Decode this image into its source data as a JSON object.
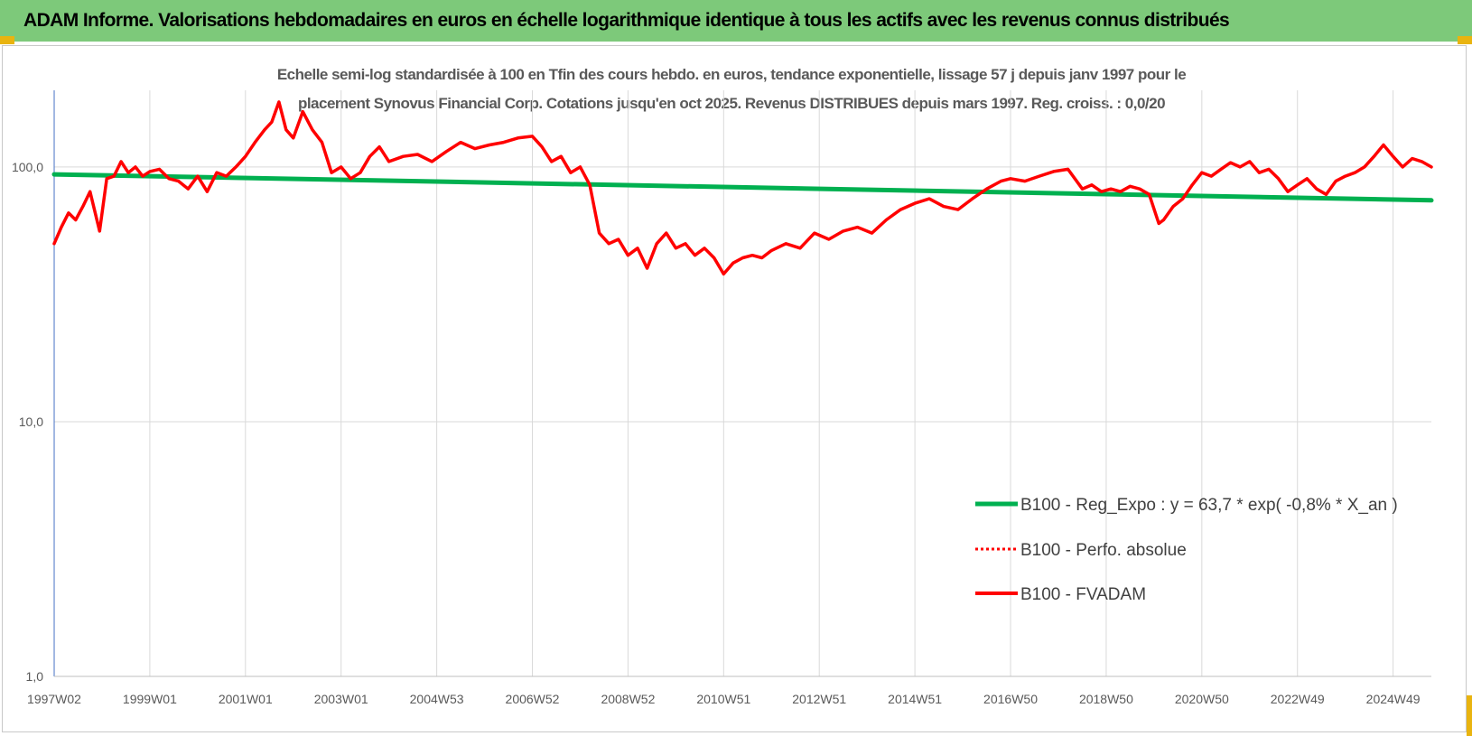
{
  "banner": {
    "title": "ADAM Informe. Valorisations hebdomadaires en euros en échelle logarithmique identique à tous les actifs avec les revenus connus distribués",
    "background": "#7dc97a"
  },
  "chart_data": {
    "type": "line",
    "title_line1": "Echelle semi-log standardisée à 100 en Tfin des cours hebdo. en euros, tendance exponentielle, lissage 57 j depuis janv 1997 pour le",
    "title_line2": "placement Synovus Financial Corp. Cotations jusqu'en oct 2025. Revenus DISTRIBUES depuis mars 1997. Reg. croiss. : 0,0/20",
    "y_scale": "log",
    "ylim": [
      1,
      200
    ],
    "yticks": [
      {
        "value": 1,
        "label": "1,0"
      },
      {
        "value": 10,
        "label": "10,0"
      },
      {
        "value": 100,
        "label": "100,0"
      }
    ],
    "xlim": [
      1997.0,
      2025.8
    ],
    "xticks": [
      {
        "x": 1997.0,
        "label": "1997W02"
      },
      {
        "x": 1999.0,
        "label": "1999W01"
      },
      {
        "x": 2001.0,
        "label": "2001W01"
      },
      {
        "x": 2003.0,
        "label": "2003W01"
      },
      {
        "x": 2005.0,
        "label": "2004W53"
      },
      {
        "x": 2007.0,
        "label": "2006W52"
      },
      {
        "x": 2009.0,
        "label": "2008W52"
      },
      {
        "x": 2011.0,
        "label": "2010W51"
      },
      {
        "x": 2013.0,
        "label": "2012W51"
      },
      {
        "x": 2015.0,
        "label": "2014W51"
      },
      {
        "x": 2017.0,
        "label": "2016W50"
      },
      {
        "x": 2019.0,
        "label": "2018W50"
      },
      {
        "x": 2021.0,
        "label": "2020W50"
      },
      {
        "x": 2023.0,
        "label": "2022W49"
      },
      {
        "x": 2025.0,
        "label": "2024W49"
      }
    ],
    "grid": "vertical",
    "legend_position": "bottom-right",
    "series": [
      {
        "name": "B100 - Reg_Expo : y = 63,7 * exp( -0,8% *  X_an )",
        "color": "#00b050",
        "style": "solid",
        "x": [
          1997.0,
          2025.8
        ],
        "values": [
          93.5,
          74.0
        ]
      },
      {
        "name": "B100 - Perfo. absolue",
        "color": "#ff0000",
        "style": "dotted",
        "x": [],
        "values": []
      },
      {
        "name": "B100 - FVADAM",
        "color": "#ff0000",
        "style": "solid",
        "x": [
          1997.0,
          1997.15,
          1997.3,
          1997.45,
          1997.6,
          1997.75,
          1997.95,
          1998.1,
          1998.25,
          1998.4,
          1998.55,
          1998.7,
          1998.85,
          1999.0,
          1999.2,
          1999.4,
          1999.6,
          1999.8,
          2000.0,
          2000.2,
          2000.4,
          2000.6,
          2000.8,
          2001.0,
          2001.2,
          2001.4,
          2001.55,
          2001.7,
          2001.85,
          2002.0,
          2002.2,
          2002.4,
          2002.6,
          2002.8,
          2003.0,
          2003.2,
          2003.4,
          2003.6,
          2003.8,
          2004.0,
          2004.3,
          2004.6,
          2004.9,
          2005.2,
          2005.5,
          2005.8,
          2006.1,
          2006.4,
          2006.7,
          2007.0,
          2007.2,
          2007.4,
          2007.6,
          2007.8,
          2008.0,
          2008.2,
          2008.4,
          2008.6,
          2008.8,
          2009.0,
          2009.2,
          2009.4,
          2009.6,
          2009.8,
          2010.0,
          2010.2,
          2010.4,
          2010.6,
          2010.8,
          2011.0,
          2011.2,
          2011.4,
          2011.6,
          2011.8,
          2012.0,
          2012.3,
          2012.6,
          2012.9,
          2013.2,
          2013.5,
          2013.8,
          2014.1,
          2014.4,
          2014.7,
          2015.0,
          2015.3,
          2015.6,
          2015.9,
          2016.2,
          2016.5,
          2016.8,
          2017.0,
          2017.3,
          2017.6,
          2017.9,
          2018.2,
          2018.5,
          2018.7,
          2018.9,
          2019.1,
          2019.3,
          2019.5,
          2019.7,
          2019.9,
          2020.1,
          2020.2,
          2020.4,
          2020.6,
          2020.8,
          2021.0,
          2021.2,
          2021.4,
          2021.6,
          2021.8,
          2022.0,
          2022.2,
          2022.4,
          2022.6,
          2022.8,
          2023.0,
          2023.2,
          2023.4,
          2023.6,
          2023.8,
          2024.0,
          2024.2,
          2024.4,
          2024.6,
          2024.8,
          2025.0,
          2025.2,
          2025.4,
          2025.6,
          2025.8
        ],
        "values": [
          50,
          58,
          66,
          62,
          70,
          80,
          56,
          90,
          92,
          105,
          95,
          100,
          92,
          96,
          98,
          90,
          88,
          82,
          92,
          80,
          95,
          92,
          100,
          110,
          125,
          140,
          150,
          180,
          140,
          130,
          165,
          140,
          125,
          95,
          100,
          90,
          95,
          110,
          120,
          105,
          110,
          112,
          105,
          115,
          125,
          118,
          122,
          125,
          130,
          132,
          120,
          105,
          110,
          95,
          100,
          85,
          55,
          50,
          52,
          45,
          48,
          40,
          50,
          55,
          48,
          50,
          45,
          48,
          44,
          38,
          42,
          44,
          45,
          44,
          47,
          50,
          48,
          55,
          52,
          56,
          58,
          55,
          62,
          68,
          72,
          75,
          70,
          68,
          75,
          82,
          88,
          90,
          88,
          92,
          96,
          98,
          82,
          85,
          80,
          82,
          80,
          84,
          82,
          78,
          60,
          62,
          70,
          75,
          85,
          95,
          92,
          98,
          104,
          100,
          105,
          95,
          98,
          90,
          80,
          85,
          90,
          82,
          78,
          88,
          92,
          95,
          100,
          110,
          122,
          110,
          100,
          108,
          105,
          100
        ]
      }
    ]
  }
}
